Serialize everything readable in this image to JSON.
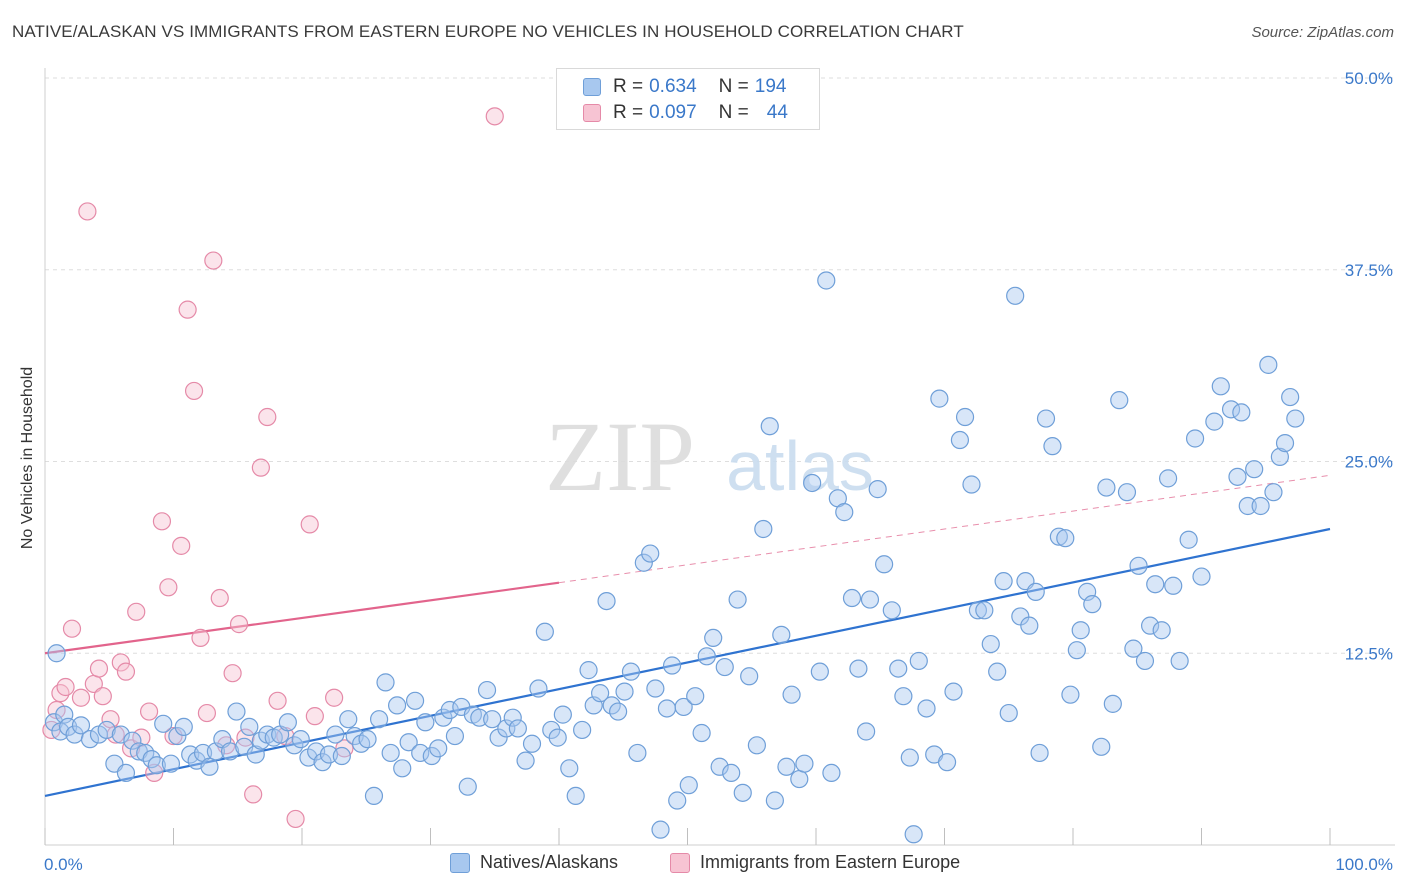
{
  "title": "NATIVE/ALASKAN VS IMMIGRANTS FROM EASTERN EUROPE NO VEHICLES IN HOUSEHOLD CORRELATION CHART",
  "source": "Source: ZipAtlas.com",
  "watermark": {
    "zip": "ZIP",
    "atlas": "atlas"
  },
  "legend": {
    "rows": [
      {
        "r_label": "R =",
        "r_value": "0.634",
        "n_label": "N =",
        "n_value": "194",
        "color": "#a8c8ef",
        "border": "#6f9fd8"
      },
      {
        "r_label": "R =",
        "r_value": "0.097",
        "n_label": "N =",
        "n_value": "44",
        "color": "#f7c4d3",
        "border": "#e58aa8"
      }
    ]
  },
  "bottom_legend": {
    "series1": "Natives/Alaskans",
    "series2": "Immigrants from Eastern Europe"
  },
  "chart_data": {
    "type": "scatter",
    "ylabel": "No Vehicles in Household",
    "xlabel": "",
    "xlim": [
      0,
      100
    ],
    "ylim": [
      0,
      50
    ],
    "x_tick_labels": [
      "0.0%",
      "100.0%"
    ],
    "y_tick_labels": [
      "12.5%",
      "25.0%",
      "37.5%",
      "50.0%"
    ],
    "y_ticks": [
      12.5,
      25.0,
      37.5,
      50.0
    ],
    "grid": true,
    "legend_placement": "top-center",
    "series": [
      {
        "name": "Natives/Alaskans",
        "color": "#6f9fd8",
        "fill": "#a8c8ef",
        "trend": {
          "x0": 0,
          "y0": 3.2,
          "x1": 100,
          "y1": 20.6
        },
        "points": [
          [
            0.7,
            8.0
          ],
          [
            0.9,
            12.5
          ],
          [
            1.2,
            7.4
          ],
          [
            1.5,
            8.5
          ],
          [
            1.8,
            7.7
          ],
          [
            2.3,
            7.2
          ],
          [
            2.8,
            7.8
          ],
          [
            3.5,
            6.9
          ],
          [
            4.2,
            7.2
          ],
          [
            4.8,
            7.5
          ],
          [
            5.4,
            5.3
          ],
          [
            5.9,
            7.2
          ],
          [
            6.3,
            4.7
          ],
          [
            6.8,
            6.8
          ],
          [
            7.3,
            6.1
          ],
          [
            7.8,
            6.0
          ],
          [
            8.3,
            5.6
          ],
          [
            8.7,
            5.2
          ],
          [
            9.2,
            7.9
          ],
          [
            9.8,
            5.3
          ],
          [
            10.3,
            7.1
          ],
          [
            10.8,
            7.7
          ],
          [
            11.3,
            5.9
          ],
          [
            11.8,
            5.5
          ],
          [
            12.3,
            6.0
          ],
          [
            12.8,
            5.1
          ],
          [
            13.3,
            6.1
          ],
          [
            13.8,
            6.9
          ],
          [
            14.4,
            6.1
          ],
          [
            14.9,
            8.7
          ],
          [
            15.5,
            6.4
          ],
          [
            15.9,
            7.7
          ],
          [
            16.4,
            5.9
          ],
          [
            16.8,
            6.8
          ],
          [
            17.3,
            7.2
          ],
          [
            17.8,
            7.0
          ],
          [
            18.3,
            7.2
          ],
          [
            18.9,
            8.0
          ],
          [
            19.4,
            6.5
          ],
          [
            19.9,
            6.9
          ],
          [
            20.5,
            5.7
          ],
          [
            21.1,
            6.1
          ],
          [
            21.6,
            5.4
          ],
          [
            22.1,
            5.9
          ],
          [
            22.6,
            7.2
          ],
          [
            23.1,
            5.8
          ],
          [
            23.6,
            8.2
          ],
          [
            24.1,
            7.1
          ],
          [
            24.6,
            6.6
          ],
          [
            25.1,
            6.9
          ],
          [
            25.6,
            3.2
          ],
          [
            26.0,
            8.2
          ],
          [
            26.5,
            10.6
          ],
          [
            26.9,
            6.0
          ],
          [
            27.4,
            9.1
          ],
          [
            27.8,
            5.0
          ],
          [
            28.3,
            6.7
          ],
          [
            28.8,
            9.4
          ],
          [
            29.2,
            6.0
          ],
          [
            29.6,
            8.0
          ],
          [
            30.1,
            5.8
          ],
          [
            30.6,
            6.3
          ],
          [
            31.0,
            8.3
          ],
          [
            31.5,
            8.8
          ],
          [
            31.9,
            7.1
          ],
          [
            32.4,
            9.0
          ],
          [
            32.9,
            3.8
          ],
          [
            33.3,
            8.5
          ],
          [
            33.8,
            8.3
          ],
          [
            34.4,
            10.1
          ],
          [
            34.8,
            8.2
          ],
          [
            35.3,
            7.0
          ],
          [
            35.9,
            7.6
          ],
          [
            36.4,
            8.3
          ],
          [
            36.8,
            7.6
          ],
          [
            37.4,
            5.5
          ],
          [
            37.9,
            6.6
          ],
          [
            38.4,
            10.2
          ],
          [
            38.9,
            13.9
          ],
          [
            39.4,
            7.5
          ],
          [
            39.9,
            7.0
          ],
          [
            40.3,
            8.5
          ],
          [
            40.8,
            5.0
          ],
          [
            41.3,
            3.2
          ],
          [
            41.8,
            7.5
          ],
          [
            42.3,
            11.4
          ],
          [
            42.7,
            9.1
          ],
          [
            43.2,
            9.9
          ],
          [
            43.7,
            15.9
          ],
          [
            44.1,
            9.1
          ],
          [
            44.6,
            8.7
          ],
          [
            45.1,
            10.0
          ],
          [
            45.6,
            11.3
          ],
          [
            46.1,
            6.0
          ],
          [
            46.6,
            18.4
          ],
          [
            47.1,
            19.0
          ],
          [
            47.5,
            10.2
          ],
          [
            47.9,
            1.0
          ],
          [
            48.4,
            8.9
          ],
          [
            48.8,
            11.7
          ],
          [
            49.2,
            2.9
          ],
          [
            49.7,
            9.0
          ],
          [
            50.1,
            3.9
          ],
          [
            50.6,
            9.7
          ],
          [
            51.1,
            7.3
          ],
          [
            51.5,
            12.3
          ],
          [
            52.0,
            13.5
          ],
          [
            52.5,
            5.1
          ],
          [
            52.9,
            11.6
          ],
          [
            53.4,
            4.7
          ],
          [
            53.9,
            16.0
          ],
          [
            54.3,
            3.4
          ],
          [
            54.8,
            11.0
          ],
          [
            55.4,
            6.5
          ],
          [
            55.9,
            20.6
          ],
          [
            56.4,
            27.3
          ],
          [
            56.8,
            2.9
          ],
          [
            57.3,
            13.7
          ],
          [
            57.7,
            5.1
          ],
          [
            58.1,
            9.8
          ],
          [
            58.7,
            4.3
          ],
          [
            59.1,
            5.3
          ],
          [
            59.7,
            23.6
          ],
          [
            60.3,
            11.3
          ],
          [
            60.8,
            36.8
          ],
          [
            61.2,
            4.7
          ],
          [
            61.7,
            22.6
          ],
          [
            62.2,
            21.7
          ],
          [
            62.8,
            16.1
          ],
          [
            63.3,
            11.5
          ],
          [
            63.9,
            7.4
          ],
          [
            64.2,
            16.0
          ],
          [
            64.8,
            23.2
          ],
          [
            65.3,
            18.3
          ],
          [
            65.9,
            15.3
          ],
          [
            66.4,
            11.5
          ],
          [
            66.8,
            9.7
          ],
          [
            67.3,
            5.7
          ],
          [
            67.6,
            0.7
          ],
          [
            68.0,
            12.0
          ],
          [
            68.6,
            8.9
          ],
          [
            69.2,
            5.9
          ],
          [
            69.6,
            29.1
          ],
          [
            70.2,
            5.4
          ],
          [
            70.7,
            10.0
          ],
          [
            71.2,
            26.4
          ],
          [
            71.6,
            27.9
          ],
          [
            72.1,
            23.5
          ],
          [
            72.6,
            15.3
          ],
          [
            73.1,
            15.3
          ],
          [
            73.6,
            13.1
          ],
          [
            74.1,
            11.3
          ],
          [
            74.6,
            17.2
          ],
          [
            75.0,
            8.6
          ],
          [
            75.5,
            35.8
          ],
          [
            75.9,
            14.9
          ],
          [
            76.3,
            17.2
          ],
          [
            76.6,
            14.3
          ],
          [
            77.1,
            16.5
          ],
          [
            77.4,
            6.0
          ],
          [
            77.9,
            27.8
          ],
          [
            78.4,
            26.0
          ],
          [
            78.9,
            20.1
          ],
          [
            79.4,
            20.0
          ],
          [
            79.8,
            9.8
          ],
          [
            80.3,
            12.7
          ],
          [
            80.6,
            14.0
          ],
          [
            81.1,
            16.5
          ],
          [
            81.5,
            15.7
          ],
          [
            82.2,
            6.4
          ],
          [
            82.6,
            23.3
          ],
          [
            83.1,
            9.2
          ],
          [
            83.6,
            29.0
          ],
          [
            84.2,
            23.0
          ],
          [
            84.7,
            12.8
          ],
          [
            85.1,
            18.2
          ],
          [
            85.6,
            12.0
          ],
          [
            86.0,
            14.3
          ],
          [
            86.4,
            17.0
          ],
          [
            86.9,
            14.0
          ],
          [
            87.4,
            23.9
          ],
          [
            87.8,
            16.9
          ],
          [
            88.3,
            12.0
          ],
          [
            89.0,
            19.9
          ],
          [
            89.5,
            26.5
          ],
          [
            90.0,
            17.5
          ],
          [
            91.0,
            27.6
          ],
          [
            91.5,
            29.9
          ],
          [
            92.3,
            28.4
          ],
          [
            92.8,
            24.0
          ],
          [
            93.1,
            28.2
          ],
          [
            93.6,
            22.1
          ],
          [
            94.1,
            24.5
          ],
          [
            94.6,
            22.1
          ],
          [
            95.2,
            31.3
          ],
          [
            95.6,
            23.0
          ],
          [
            96.1,
            25.3
          ],
          [
            96.5,
            26.2
          ],
          [
            96.9,
            29.2
          ],
          [
            97.3,
            27.8
          ]
        ]
      },
      {
        "name": "Immigrants from Eastern Europe",
        "color": "#e58aa8",
        "fill": "#f7c4d3",
        "trend": {
          "x0": 0,
          "y0": 12.5,
          "x1": 40,
          "y1": 17.1
        },
        "trend_dashed": {
          "x0": 40,
          "y0": 17.1,
          "x1": 100,
          "y1": 24.1
        },
        "points": [
          [
            0.5,
            7.5
          ],
          [
            0.9,
            8.8
          ],
          [
            1.2,
            9.9
          ],
          [
            1.6,
            10.3
          ],
          [
            2.1,
            14.1
          ],
          [
            2.8,
            9.6
          ],
          [
            3.3,
            41.3
          ],
          [
            3.8,
            10.5
          ],
          [
            4.2,
            11.5
          ],
          [
            4.5,
            9.7
          ],
          [
            5.1,
            8.2
          ],
          [
            5.5,
            7.2
          ],
          [
            5.9,
            11.9
          ],
          [
            6.3,
            11.3
          ],
          [
            6.7,
            6.3
          ],
          [
            7.1,
            15.2
          ],
          [
            7.5,
            7.0
          ],
          [
            8.1,
            8.7
          ],
          [
            8.5,
            4.7
          ],
          [
            9.1,
            21.1
          ],
          [
            9.6,
            16.8
          ],
          [
            10.0,
            7.1
          ],
          [
            10.6,
            19.5
          ],
          [
            11.1,
            34.9
          ],
          [
            11.6,
            29.6
          ],
          [
            12.1,
            13.5
          ],
          [
            12.6,
            8.6
          ],
          [
            13.1,
            38.1
          ],
          [
            13.6,
            16.1
          ],
          [
            14.1,
            6.5
          ],
          [
            14.6,
            11.2
          ],
          [
            15.1,
            14.4
          ],
          [
            15.6,
            7.0
          ],
          [
            16.2,
            3.3
          ],
          [
            16.8,
            24.6
          ],
          [
            17.3,
            27.9
          ],
          [
            18.1,
            9.4
          ],
          [
            18.7,
            7.1
          ],
          [
            19.5,
            1.7
          ],
          [
            20.6,
            20.9
          ],
          [
            21.0,
            8.4
          ],
          [
            22.5,
            9.6
          ],
          [
            23.3,
            6.3
          ],
          [
            35.0,
            47.5
          ]
        ]
      }
    ]
  }
}
